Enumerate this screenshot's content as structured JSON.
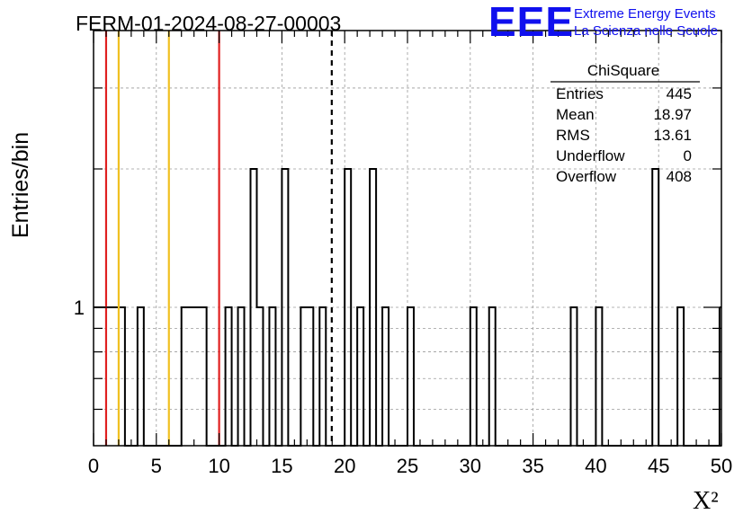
{
  "chart_data": {
    "type": "bar",
    "title": "FERM-01-2024-08-27-00003",
    "xlabel": "X²",
    "ylabel": "Entries/bin",
    "xlim": [
      0,
      50
    ],
    "ylim": [
      0.5,
      4
    ],
    "y_scale": "log",
    "grid": true,
    "bin_width": 0.5,
    "x_ticks": [
      "0",
      "5",
      "10",
      "15",
      "20",
      "25",
      "30",
      "35",
      "40",
      "45",
      "50"
    ],
    "y_ticks": [
      "1"
    ],
    "bins": [
      {
        "x": 0.0,
        "y": 1
      },
      {
        "x": 0.5,
        "y": 1
      },
      {
        "x": 1.0,
        "y": 1
      },
      {
        "x": 1.5,
        "y": 1
      },
      {
        "x": 2.0,
        "y": 1
      },
      {
        "x": 3.5,
        "y": 1
      },
      {
        "x": 7.0,
        "y": 1
      },
      {
        "x": 7.5,
        "y": 1
      },
      {
        "x": 8.0,
        "y": 1
      },
      {
        "x": 8.5,
        "y": 1
      },
      {
        "x": 10.5,
        "y": 1
      },
      {
        "x": 11.5,
        "y": 1
      },
      {
        "x": 12.5,
        "y": 2
      },
      {
        "x": 13.0,
        "y": 1
      },
      {
        "x": 14.0,
        "y": 1
      },
      {
        "x": 15.0,
        "y": 2
      },
      {
        "x": 16.5,
        "y": 1
      },
      {
        "x": 17.0,
        "y": 1
      },
      {
        "x": 18.0,
        "y": 1
      },
      {
        "x": 20.0,
        "y": 2
      },
      {
        "x": 21.0,
        "y": 1
      },
      {
        "x": 22.0,
        "y": 2
      },
      {
        "x": 23.0,
        "y": 1
      },
      {
        "x": 25.0,
        "y": 1
      },
      {
        "x": 30.0,
        "y": 1
      },
      {
        "x": 31.5,
        "y": 1
      },
      {
        "x": 38.0,
        "y": 1
      },
      {
        "x": 40.0,
        "y": 1
      },
      {
        "x": 44.5,
        "y": 2
      },
      {
        "x": 46.5,
        "y": 1
      }
    ],
    "reference_lines": [
      {
        "x": 1.0,
        "color": "#e02020",
        "style": "solid"
      },
      {
        "x": 2.0,
        "color": "#f0c020",
        "style": "solid"
      },
      {
        "x": 6.0,
        "color": "#f0c020",
        "style": "solid"
      },
      {
        "x": 10.0,
        "color": "#e02020",
        "style": "solid"
      },
      {
        "x": 18.97,
        "color": "#000000",
        "style": "dashed"
      }
    ],
    "stats_box": {
      "title": "ChiSquare",
      "rows": [
        {
          "label": "Entries",
          "value": "445"
        },
        {
          "label": "Mean",
          "value": "18.97"
        },
        {
          "label": "RMS",
          "value": "13.61"
        },
        {
          "label": "Underflow",
          "value": "0"
        },
        {
          "label": "Overflow",
          "value": "408"
        }
      ]
    }
  },
  "logo": {
    "mark": "EEE",
    "line1": "Extreme Energy Events",
    "line2": "La Scienza nelle Scuole",
    "color": "#1010ee"
  }
}
